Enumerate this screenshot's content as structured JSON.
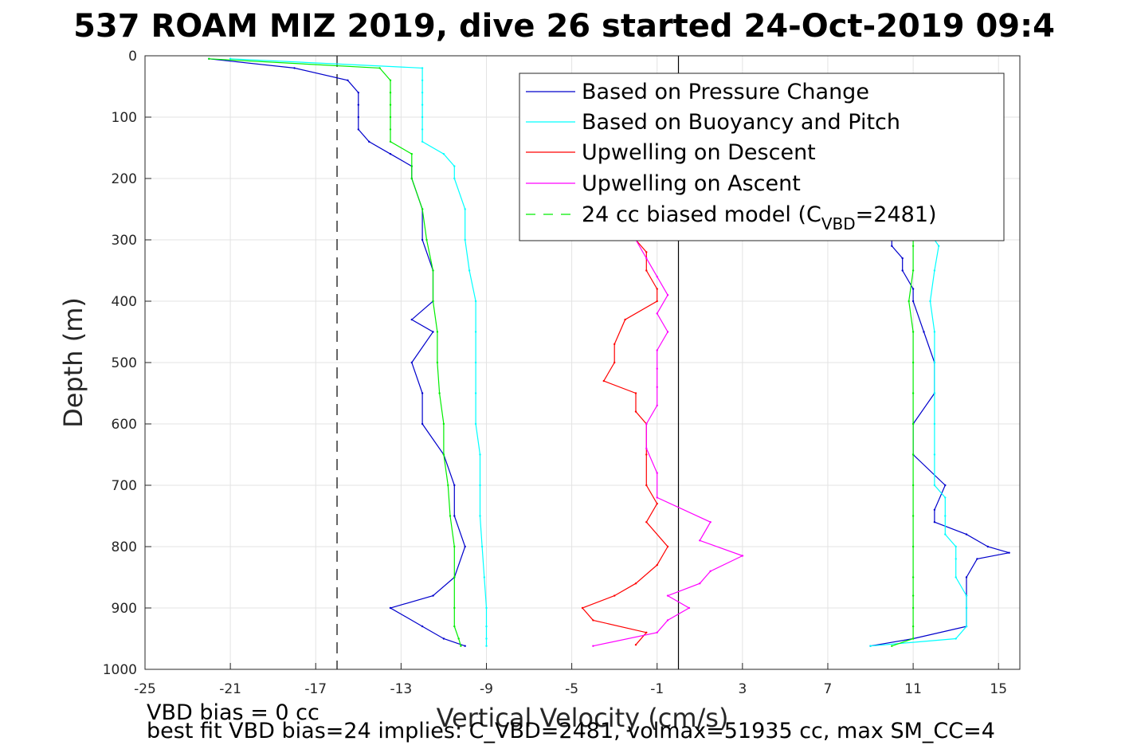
{
  "chart_data": {
    "type": "line",
    "title": "537 ROAM MIZ 2019, dive 26 started 24-Oct-2019 09:4",
    "xlabel": "Vertical Velocity (cm/s)",
    "ylabel": "Depth (m)",
    "xlim": [
      -25,
      16
    ],
    "ylim": [
      0,
      1000
    ],
    "y_reversed": true,
    "grid": true,
    "legend_position": "top-right",
    "xticks": [
      -25,
      -21,
      -17,
      -13,
      -9,
      -5,
      -1,
      3,
      7,
      11,
      15
    ],
    "yticks": [
      0,
      100,
      200,
      300,
      400,
      500,
      600,
      700,
      800,
      900,
      1000
    ],
    "reference_lines": [
      {
        "orientation": "vertical",
        "x": -16,
        "style": "dashed",
        "color": "#000000"
      },
      {
        "orientation": "vertical",
        "x": 0,
        "style": "solid",
        "color": "#000000"
      }
    ],
    "legend": [
      {
        "label": "Based on Pressure Change",
        "color": "#0000cc",
        "style": "solid"
      },
      {
        "label": "Based on Buoyancy and Pitch",
        "color": "#00ffff",
        "style": "solid"
      },
      {
        "label": "Upwelling on Descent",
        "color": "#ff0000",
        "style": "solid"
      },
      {
        "label": "Upwelling on Ascent",
        "color": "#ff00ff",
        "style": "solid"
      },
      {
        "label_main": "24 cc biased model (C",
        "label_sub": "VBD",
        "label_end": "=2481)",
        "color": "#00ee00",
        "style": "dashed"
      }
    ],
    "series": [
      {
        "name": "Based on Pressure Change",
        "color": "#0000cc",
        "branch": "descent",
        "depth": [
          5,
          20,
          40,
          60,
          80,
          100,
          120,
          140,
          160,
          180,
          200,
          250,
          300,
          350,
          400,
          430,
          450,
          500,
          550,
          600,
          650,
          700,
          750,
          800,
          850,
          880,
          900,
          930,
          950,
          962
        ],
        "values": [
          -22,
          -18,
          -15.5,
          -15,
          -15,
          -15,
          -15,
          -14.5,
          -13.5,
          -12.5,
          -12.5,
          -12,
          -12,
          -11.5,
          -11.5,
          -12.5,
          -11.5,
          -12.5,
          -12,
          -12,
          -11,
          -10.5,
          -10.5,
          -10,
          -10.5,
          -11.5,
          -13.5,
          -12,
          -11,
          -10
        ]
      },
      {
        "name": "Based on Buoyancy and Pitch",
        "color": "#00ffff",
        "branch": "descent",
        "depth": [
          5,
          20,
          40,
          60,
          80,
          100,
          120,
          140,
          160,
          180,
          200,
          250,
          300,
          350,
          400,
          450,
          500,
          550,
          600,
          650,
          700,
          750,
          800,
          850,
          900,
          930,
          950,
          962
        ],
        "values": [
          -21,
          -12,
          -12,
          -12,
          -12,
          -12,
          -12,
          -12,
          -11,
          -10.5,
          -10.5,
          -10,
          -10,
          -9.8,
          -9.5,
          -9.5,
          -9.5,
          -9.5,
          -9.5,
          -9.3,
          -9.3,
          -9.3,
          -9.2,
          -9.1,
          -9,
          -9,
          -9,
          -9
        ]
      },
      {
        "name": "24 cc biased model (CVBD=2481)",
        "color": "#00ee00",
        "branch": "descent",
        "depth": [
          5,
          20,
          40,
          60,
          80,
          100,
          120,
          140,
          160,
          180,
          200,
          250,
          300,
          350,
          400,
          450,
          500,
          550,
          600,
          650,
          700,
          750,
          800,
          850,
          900,
          930,
          950,
          962
        ],
        "values": [
          -22,
          -14,
          -13.5,
          -13.5,
          -13.5,
          -13.5,
          -13.5,
          -13.5,
          -12.5,
          -12.5,
          -12.5,
          -12,
          -11.8,
          -11.5,
          -11.5,
          -11.3,
          -11.3,
          -11.2,
          -11,
          -11,
          -10.8,
          -10.7,
          -10.5,
          -10.5,
          -10.5,
          -10.5,
          -10.3,
          -10.2
        ]
      },
      {
        "name": "Based on Pressure Change",
        "color": "#0000cc",
        "branch": "ascent",
        "depth": [
          962,
          950,
          930,
          900,
          880,
          850,
          820,
          810,
          800,
          780,
          760,
          740,
          700,
          650,
          600,
          550,
          500,
          450,
          400,
          380,
          350,
          330,
          310,
          300
        ],
        "values": [
          9,
          11,
          13.5,
          13.5,
          13.5,
          13.5,
          14,
          15.5,
          14.5,
          13.5,
          12,
          12,
          12.5,
          11,
          11,
          12,
          12,
          11.5,
          11,
          11,
          10.5,
          10.5,
          10,
          10
        ]
      },
      {
        "name": "Based on Buoyancy and Pitch",
        "color": "#00ffff",
        "branch": "ascent",
        "depth": [
          962,
          950,
          930,
          900,
          880,
          850,
          820,
          800,
          780,
          750,
          720,
          700,
          650,
          600,
          550,
          500,
          450,
          400,
          350,
          310,
          300
        ],
        "values": [
          9,
          13,
          13.5,
          13.5,
          13.5,
          13,
          13,
          13,
          12.5,
          12.5,
          12.5,
          12,
          12,
          12,
          12,
          12,
          12,
          11.8,
          12,
          12.2,
          12
        ]
      },
      {
        "name": "24 cc biased model (CVBD=2481)",
        "color": "#00ee00",
        "branch": "ascent",
        "depth": [
          962,
          950,
          930,
          900,
          880,
          850,
          800,
          750,
          700,
          650,
          600,
          550,
          500,
          450,
          400,
          350,
          310,
          300
        ],
        "values": [
          10,
          11,
          11,
          11,
          11,
          11,
          11,
          11,
          11,
          11,
          11,
          11,
          11,
          11,
          10.8,
          11,
          11,
          11
        ]
      },
      {
        "name": "Upwelling on Descent",
        "color": "#ff0000",
        "depth": [
          300,
          320,
          350,
          380,
          400,
          430,
          470,
          500,
          530,
          550,
          580,
          600,
          650,
          700,
          730,
          760,
          800,
          830,
          860,
          880,
          900,
          920,
          940,
          960
        ],
        "values": [
          -2,
          -1.5,
          -1.5,
          -1,
          -1,
          -2.5,
          -3,
          -3,
          -3.5,
          -2,
          -2,
          -1.5,
          -1.5,
          -1.5,
          -1,
          -1.5,
          -0.5,
          -1,
          -2,
          -3,
          -4.5,
          -4,
          -1.5,
          -2
        ]
      },
      {
        "name": "Upwelling on Ascent",
        "color": "#ff00ff",
        "depth": [
          300,
          330,
          360,
          390,
          420,
          450,
          480,
          510,
          540,
          570,
          600,
          640,
          680,
          720,
          760,
          790,
          815,
          840,
          860,
          880,
          900,
          920,
          940,
          962
        ],
        "values": [
          -2,
          -1.5,
          -1,
          -0.5,
          -1,
          -0.5,
          -1,
          -1,
          -1,
          -1,
          -1.5,
          -1.5,
          -1,
          -1,
          1.5,
          1,
          3,
          1.5,
          1,
          -0.5,
          0.5,
          -0.5,
          -1,
          -4
        ]
      }
    ]
  },
  "footer": {
    "line1": "VBD bias = 0 cc",
    "line2": "best fit VBD bias=24 implies: C_VBD=2481, volmax=51935 cc, max SM_CC=4"
  }
}
